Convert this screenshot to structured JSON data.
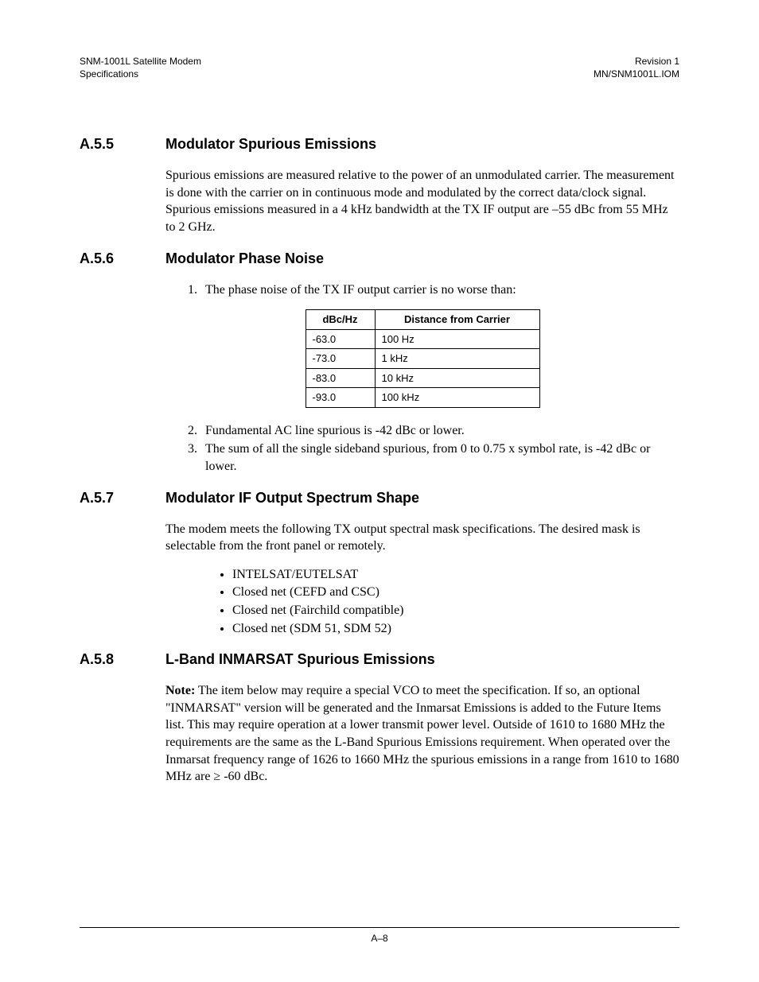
{
  "header": {
    "left_line1": "SNM-1001L Satellite Modem",
    "left_line2": "Specifications",
    "right_line1": "Revision 1",
    "right_line2": "MN/SNM1001L.IOM"
  },
  "sections": {
    "a55": {
      "num": "A.5.5",
      "title": "Modulator Spurious Emissions",
      "para": "Spurious emissions are measured relative to the power of an unmodulated carrier. The measurement is done with the carrier on in continuous mode and modulated by the correct data/clock signal. Spurious emissions measured in a 4 kHz bandwidth at the TX IF output are –55 dBc from 55 MHz to 2 GHz."
    },
    "a56": {
      "num": "A.5.6",
      "title": "Modulator Phase Noise",
      "item1": "The phase noise of the TX IF output carrier is no worse than:",
      "item2": "Fundamental AC line spurious is -42 dBc or lower.",
      "item3": "The sum of all the single sideband spurious, from 0 to 0.75 x symbol rate, is -42 dBc or lower.",
      "table": {
        "col0": "dBc/Hz",
        "col1": "Distance from Carrier",
        "rows": [
          {
            "c0": "-63.0",
            "c1": "100 Hz"
          },
          {
            "c0": "-73.0",
            "c1": "1 kHz"
          },
          {
            "c0": "-83.0",
            "c1": "10 kHz"
          },
          {
            "c0": "-93.0",
            "c1": "100 kHz"
          }
        ]
      }
    },
    "a57": {
      "num": "A.5.7",
      "title": "Modulator IF Output Spectrum Shape",
      "para": "The modem meets the following TX output spectral mask specifications. The desired mask is selectable from the front panel or remotely.",
      "bullets": [
        "INTELSAT/EUTELSAT",
        "Closed net (CEFD and CSC)",
        "Closed net (Fairchild compatible)",
        "Closed net (SDM 51, SDM 52)"
      ]
    },
    "a58": {
      "num": "A.5.8",
      "title": "L-Band INMARSAT Spurious Emissions",
      "note_label": "Note:",
      "para": " The item below may require a special VCO to meet the specification. If so, an optional \"INMARSAT\" version will be generated and the Inmarsat Emissions is added to the Future Items list. This may require operation at a lower transmit power level. Outside of 1610 to 1680 MHz the requirements are the same as the L-Band Spurious Emissions requirement. When operated over the Inmarsat frequency range of 1626 to 1660 MHz the spurious emissions in a range from 1610 to 1680 MHz are  ≥ -60 dBc."
    }
  },
  "footer": "A–8"
}
